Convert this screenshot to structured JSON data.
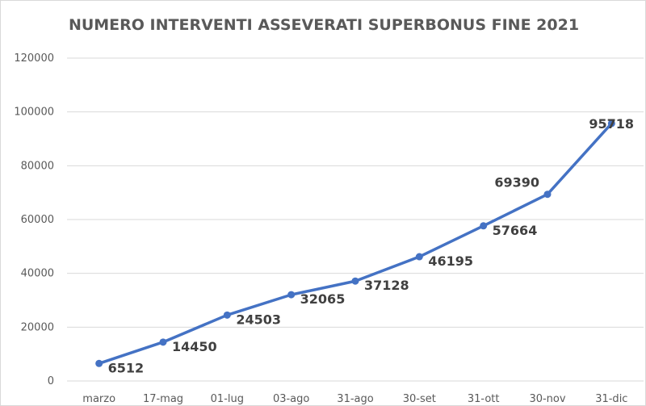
{
  "chart_data": {
    "type": "line",
    "title": "NUMERO INTERVENTI ASSEVERATI SUPERBONUS FINE 2021",
    "xlabel": "",
    "ylabel": "",
    "categories": [
      "marzo",
      "17-mag",
      "01-lug",
      "03-ago",
      "31-ago",
      "30-set",
      "31-ott",
      "30-nov",
      "31-dic"
    ],
    "series": [
      {
        "values": [
          6512,
          14450,
          24503,
          32065,
          37128,
          46195,
          57664,
          69390,
          95718
        ]
      }
    ],
    "data_labels": [
      "6512",
      "14450",
      "24503",
      "32065",
      "37128",
      "46195",
      "57664",
      "69390",
      "95718"
    ],
    "ylim": [
      0,
      120000
    ],
    "yticks": [
      0,
      20000,
      40000,
      60000,
      80000,
      100000,
      120000
    ],
    "ytick_labels": [
      "0",
      "20000",
      "40000",
      "60000",
      "80000",
      "100000",
      "120000"
    ],
    "grid": true,
    "legend": "none",
    "colors": {
      "line": "#4472c4",
      "grid": "#d9d9d9",
      "text": "#595959",
      "label": "#404040"
    }
  }
}
